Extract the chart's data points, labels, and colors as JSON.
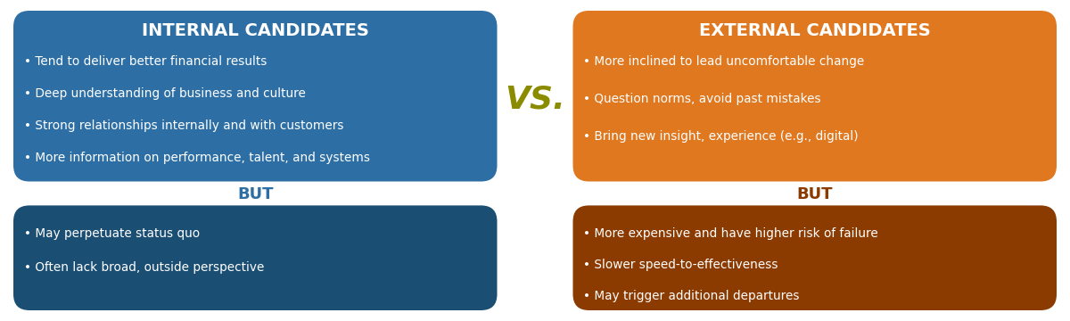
{
  "internal_title": "INTERNAL CANDIDATES",
  "internal_pros": [
    "• Tend to deliver better financial results",
    "• Deep understanding of business and culture",
    "• Strong relationships internally and with customers",
    "• More information on performance, talent, and systems"
  ],
  "internal_cons": [
    "• May perpetuate status quo",
    "• Often lack broad, outside perspective"
  ],
  "external_title": "EXTERNAL CANDIDATES",
  "external_pros": [
    "• More inclined to lead uncomfortable change",
    "• Question norms, avoid past mistakes",
    "• Bring new insight, experience (e.g., digital)"
  ],
  "external_cons": [
    "• More expensive and have higher risk of failure",
    "• Slower speed-to-effectiveness",
    "• May trigger additional departures"
  ],
  "vs_text": "VS.",
  "but_text": "BUT",
  "internal_pros_color": "#2D6FA5",
  "internal_cons_color": "#1A4E72",
  "external_pros_color": "#E07820",
  "external_cons_color": "#8B3A00",
  "internal_but_color": "#2D6FA5",
  "external_but_color": "#8B3A00",
  "vs_color": "#8B8B00",
  "title_text_color": "#FFFFFF",
  "body_text_color": "#FFFFFF",
  "bg_color": "#FFFFFF"
}
